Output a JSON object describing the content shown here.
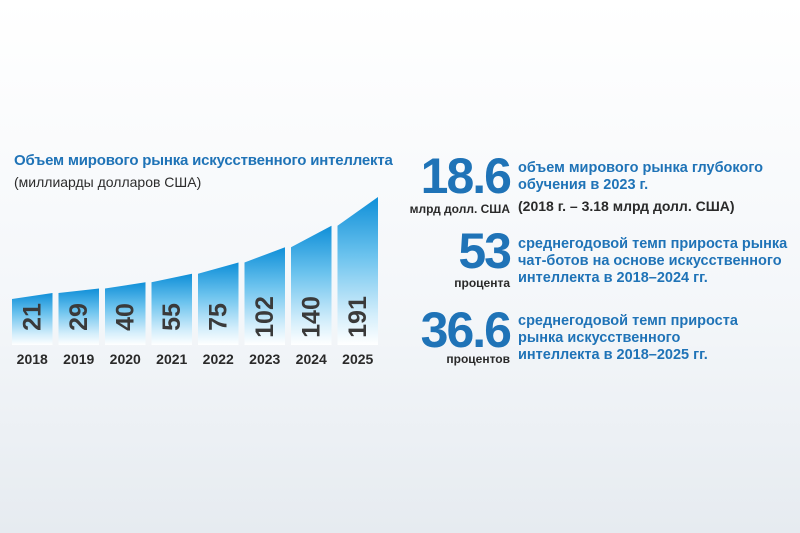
{
  "chart_data": {
    "type": "bar",
    "title": "Объем мирового рынка искусственного интеллекта",
    "subtitle": "(миллиарды долларов США)",
    "categories": [
      "2018",
      "2019",
      "2020",
      "2021",
      "2022",
      "2023",
      "2024",
      "2025"
    ],
    "values": [
      21,
      29,
      40,
      55,
      75,
      102,
      140,
      191
    ],
    "value_labels": [
      "21",
      "29",
      "40",
      "55",
      "75",
      "102",
      "140",
      "191"
    ],
    "xlabel": "",
    "ylabel": "",
    "grid": false,
    "legend": "none",
    "bar_gradient": [
      "#0f8fd8",
      "#bfe6f9",
      "#ffffff"
    ],
    "label_color": "#3a3a3a"
  },
  "stats": [
    {
      "number": "18.6",
      "unit": "млрд долл. США",
      "description": "объем мирового рынка глубокого обучения в 2023 г.",
      "note": "(2018 г. – 3.18 млрд долл. США)"
    },
    {
      "number": "53",
      "unit": "процента",
      "description": "среднегодовой темп прироста рынка чат-ботов на основе искусственного интеллекта в 2018–2024 гг.",
      "note": ""
    },
    {
      "number": "36.6",
      "unit": "процентов",
      "description": "среднегодовой темп прироста рынка искусственного интеллекта в 2018–2025 гг.",
      "note": ""
    }
  ],
  "colors": {
    "accent": "#1f73b7",
    "text": "#2a2a2a"
  }
}
